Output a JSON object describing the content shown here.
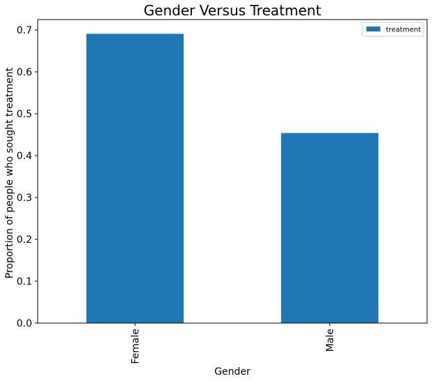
{
  "chart_data": {
    "type": "bar",
    "title": "Gender Versus Treatment",
    "xlabel": "Gender",
    "ylabel": "Proportion of people who sought treatment",
    "categories": [
      "Female",
      "Male"
    ],
    "series": [
      {
        "name": "treatment",
        "values": [
          0.691,
          0.454
        ]
      }
    ],
    "ylim": [
      0,
      0.725
    ],
    "yticks": [
      0.0,
      0.1,
      0.2,
      0.3,
      0.4,
      0.5,
      0.6,
      0.7
    ],
    "ytick_labels": [
      "0.0",
      "0.1",
      "0.2",
      "0.3",
      "0.4",
      "0.5",
      "0.6",
      "0.7"
    ],
    "legend_position": "top-right",
    "grid": false,
    "colors": {
      "bar": "#1f77b4",
      "axis": "#000000"
    }
  }
}
